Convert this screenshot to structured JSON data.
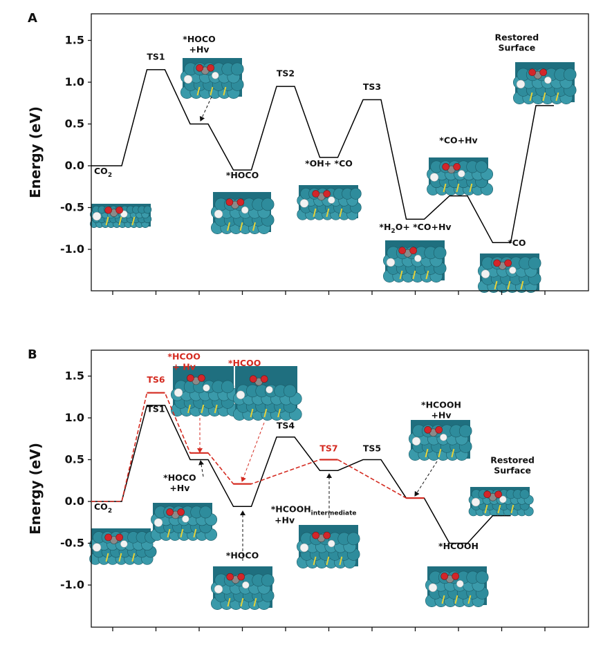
{
  "chart_data": [
    {
      "type": "line",
      "panel_label": "A",
      "ylabel": "Energy (eV)",
      "ylim": [
        -1.5,
        1.8
      ],
      "y_ticks": [
        "-1.0",
        "-0.5",
        "0.0",
        "0.5",
        "1.0",
        "1.5"
      ],
      "x_tick_count": 11,
      "series": [
        {
          "color": "#000000",
          "dash": "solid",
          "levels": [
            0.0,
            1.15,
            0.5,
            -0.05,
            0.95,
            0.1,
            0.79,
            -0.64,
            -0.36,
            -0.92,
            0.72
          ]
        }
      ],
      "labels": [
        {
          "lines": [
            "CO",
            "2"
          ],
          "sub": true,
          "x": 0.0,
          "y": -0.1,
          "color": "#111"
        },
        {
          "lines": [
            "TS1"
          ],
          "x": 1.0,
          "y": 1.27,
          "color": "#111"
        },
        {
          "lines": [
            "*HOCO",
            "+Hv"
          ],
          "x": 2.0,
          "y": 1.48,
          "color": "#111"
        },
        {
          "lines": [
            "*HOCO"
          ],
          "x": 3.0,
          "y": -0.15,
          "color": "#111"
        },
        {
          "lines": [
            "TS2"
          ],
          "x": 4.0,
          "y": 1.07,
          "color": "#111"
        },
        {
          "lines": [
            "*OH+ *CO"
          ],
          "x": 5.0,
          "y": -0.01,
          "color": "#111"
        },
        {
          "lines": [
            "TS3"
          ],
          "x": 6.0,
          "y": 0.91,
          "color": "#111"
        },
        {
          "lines": [
            "*H",
            "2",
            "O+ *CO+Hv"
          ],
          "sub2": true,
          "x": 7.0,
          "y": -0.77,
          "color": "#111"
        },
        {
          "lines": [
            "*CO+Hv"
          ],
          "x": 8.0,
          "y": 0.27,
          "color": "#111"
        },
        {
          "lines": [
            "*CO"
          ],
          "x": 9.35,
          "y": -0.96,
          "color": "#111"
        },
        {
          "lines": [
            "Restored",
            "Surface"
          ],
          "x": 9.35,
          "y": 1.5,
          "color": "#111"
        }
      ]
    },
    {
      "type": "line",
      "panel_label": "B",
      "ylabel": "Energy (eV)",
      "ylim": [
        -1.5,
        1.8
      ],
      "y_ticks": [
        "-1.0",
        "-0.5",
        "0.0",
        "0.5",
        "1.0",
        "1.5"
      ],
      "x_tick_count": 11,
      "series": [
        {
          "color": "#000000",
          "dash": "solid",
          "levels": [
            0.0,
            1.15,
            0.5,
            -0.06,
            0.77,
            0.37,
            0.5,
            0.04,
            -0.5,
            -0.17
          ]
        },
        {
          "color": "#d42a20",
          "dash": "dashed",
          "levels": [
            0.0,
            1.3,
            0.58,
            0.21,
            null,
            0.5,
            null,
            0.04
          ]
        }
      ],
      "labels": [
        {
          "lines": [
            "CO",
            "2"
          ],
          "sub": true,
          "x": 0.0,
          "y": -0.1,
          "color": "#111"
        },
        {
          "lines": [
            "TS6"
          ],
          "x": 1.0,
          "y": 1.42,
          "color": "#d42a20"
        },
        {
          "lines": [
            "TS1"
          ],
          "x": 1.0,
          "y": 1.07,
          "color": "#111"
        },
        {
          "lines": [
            "*HCOO",
            "+ Hv"
          ],
          "x": 1.65,
          "y": 1.7,
          "color": "#d42a20"
        },
        {
          "lines": [
            "*HCOO"
          ],
          "x": 3.05,
          "y": 1.62,
          "color": "#d42a20"
        },
        {
          "lines": [
            "*HOCO",
            "+Hv"
          ],
          "x": 1.55,
          "y": 0.25,
          "color": "#111"
        },
        {
          "lines": [
            "*HOCO"
          ],
          "x": 3.0,
          "y": -0.68,
          "color": "#111"
        },
        {
          "lines": [
            "TS4"
          ],
          "x": 4.0,
          "y": 0.87,
          "color": "#111"
        },
        {
          "lines": [
            "TS7"
          ],
          "x": 5.0,
          "y": 0.6,
          "color": "#d42a20"
        },
        {
          "lines": [
            "TS5"
          ],
          "x": 6.0,
          "y": 0.6,
          "color": "#111"
        },
        {
          "lines": [
            "*HCOOH",
            "intermediate",
            "+Hv"
          ],
          "sub3": true,
          "x": 4.65,
          "y": -0.13,
          "color": "#111"
        },
        {
          "lines": [
            "*HCOOH",
            "+Hv"
          ],
          "x": 7.6,
          "y": 1.12,
          "color": "#111"
        },
        {
          "lines": [
            "*HCOOH"
          ],
          "x": 8.0,
          "y": -0.57,
          "color": "#111"
        },
        {
          "lines": [
            "Restored",
            "Surface"
          ],
          "x": 9.25,
          "y": 0.46,
          "color": "#111"
        }
      ]
    }
  ]
}
